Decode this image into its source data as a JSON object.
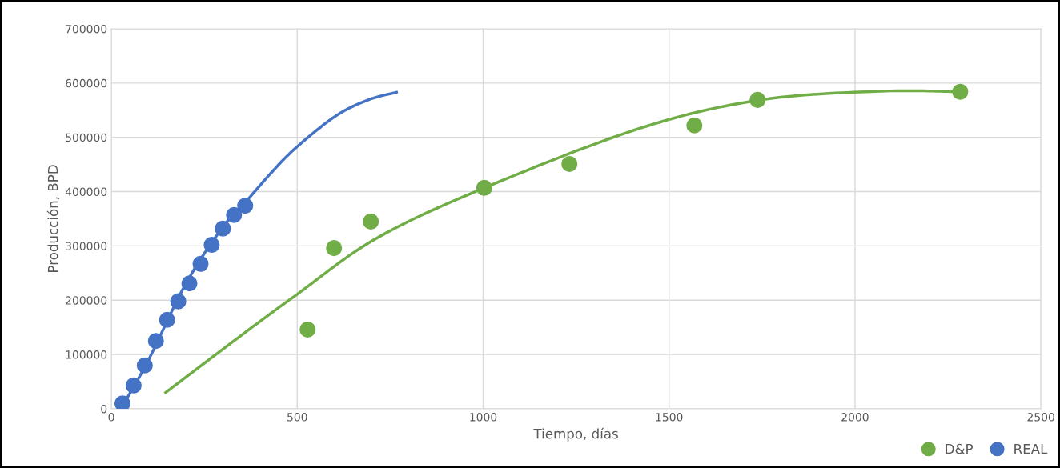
{
  "chart_data": {
    "type": "scatter",
    "xlabel": "Tiempo, días",
    "ylabel": "Producción, BPD",
    "xlim": [
      0,
      2500
    ],
    "ylim": [
      0,
      700000
    ],
    "xticks": [
      0,
      500,
      1000,
      1500,
      2000,
      2500
    ],
    "yticks": [
      0,
      100000,
      200000,
      300000,
      400000,
      500000,
      600000,
      700000
    ],
    "grid": true,
    "legend": "bottom right",
    "series": [
      {
        "name": "D&P",
        "marker": "circle",
        "color": "#70ad47",
        "x": [
          528,
          599,
          698,
          1003,
          1232,
          1568,
          1738,
          2283
        ],
        "values": [
          146000,
          296000,
          345000,
          407000,
          451000,
          522000,
          569000,
          584000
        ]
      },
      {
        "name": "REAL",
        "marker": "circle",
        "color": "#4472c4",
        "x": [
          30,
          60,
          90,
          120,
          150,
          180,
          210,
          240,
          270,
          300,
          330,
          360
        ],
        "values": [
          10000,
          43000,
          80000,
          125000,
          164000,
          198000,
          231000,
          267000,
          302000,
          332000,
          357000,
          374000
        ]
      },
      {
        "type": "line",
        "color": "#70ad47",
        "x": [
          146,
          347,
          500,
          713,
          1003,
          1423,
          1746,
          2069,
          2285
        ],
        "values": [
          30000,
          134000,
          211000,
          314000,
          407000,
          517000,
          569000,
          585000,
          584000
        ]
      },
      {
        "type": "line",
        "color": "#4472c4",
        "x": [
          30,
          100,
          200,
          300,
          360,
          433,
          500,
          605,
          691,
          767
        ],
        "values": [
          5000,
          90000,
          230000,
          335000,
          380000,
          437000,
          483000,
          540000,
          569000,
          583000
        ]
      }
    ]
  }
}
